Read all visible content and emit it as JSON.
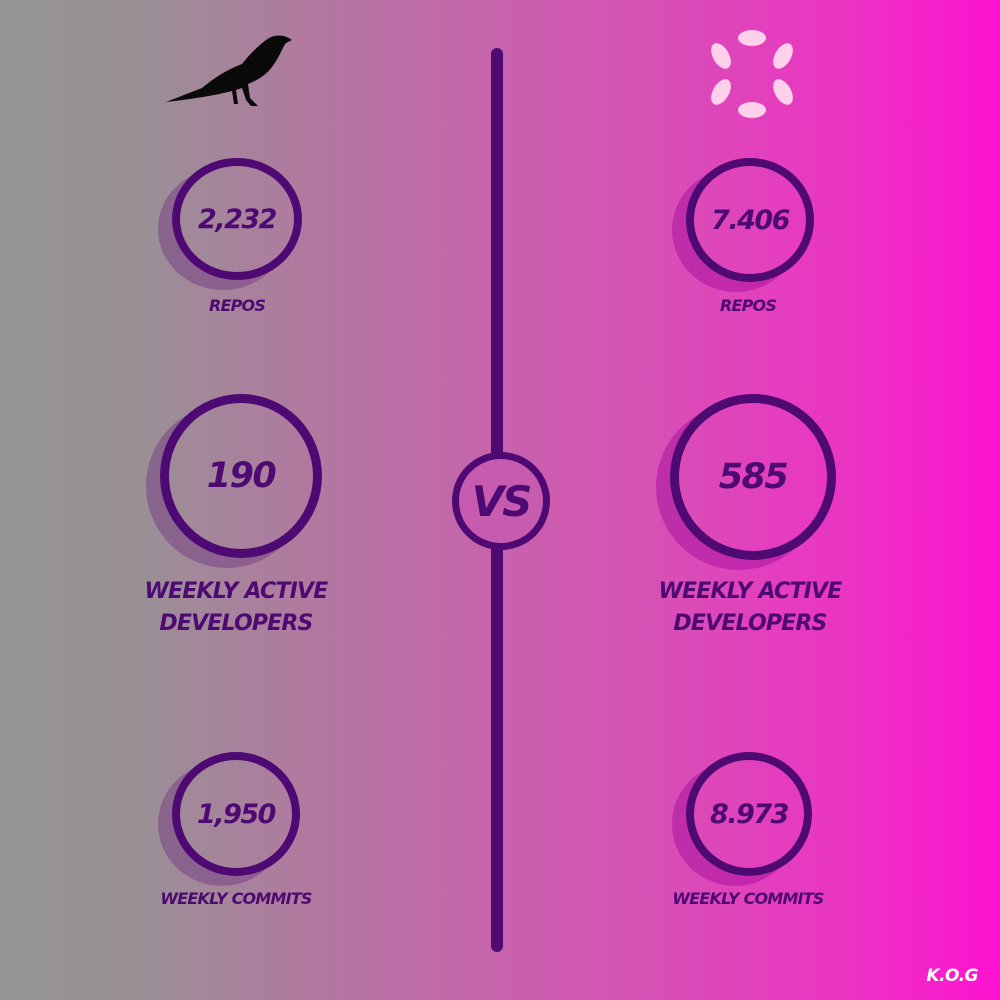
{
  "comparison": {
    "vs_label": "VS",
    "left": {
      "logo_icon": "raven-icon",
      "repos": {
        "value": "2,232",
        "label": "REPOS"
      },
      "weekly_active_developers": {
        "value": "190",
        "label_line1": "WEEKLY ACTIVE",
        "label_line2": "DEVELOPERS"
      },
      "weekly_commits": {
        "value": "1,950",
        "label": "WEEKLY COMMITS"
      }
    },
    "right": {
      "logo_icon": "polkadot-logo-icon",
      "repos": {
        "value": "7.406",
        "label": "REPOS"
      },
      "weekly_active_developers": {
        "value": "585",
        "label_line1": "WEEKLY ACTIVE",
        "label_line2": "DEVELOPERS"
      },
      "weekly_commits": {
        "value": "8.973",
        "label": "WEEKLY COMMITS"
      }
    }
  },
  "footer": {
    "credit": "K.O.G"
  },
  "colors": {
    "accent": "#4e0a72",
    "left_background": "#959595",
    "right_background": "#fe12d0",
    "footer_text": "#ffffff",
    "logo_pink": "#ffd0ea"
  }
}
